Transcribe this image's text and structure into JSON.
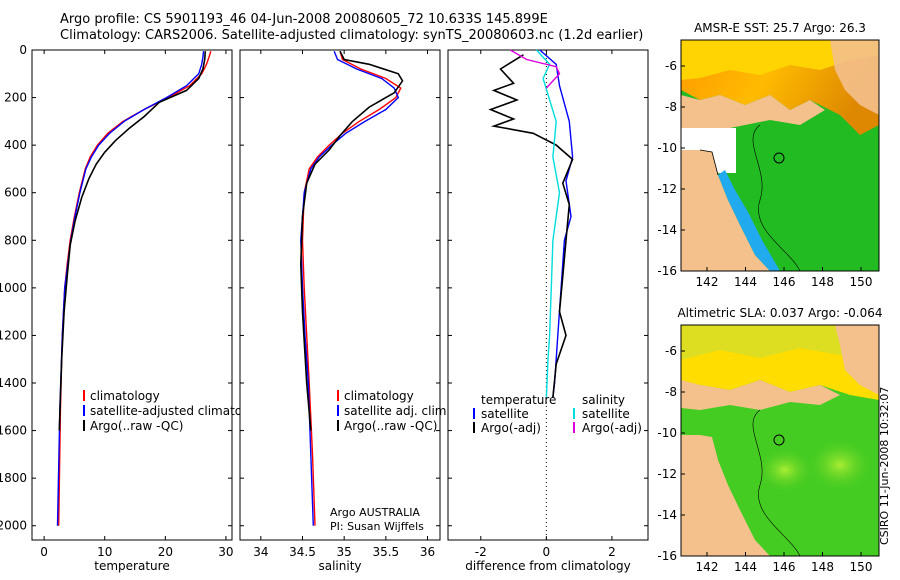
{
  "header": {
    "title_line1": "Argo profile: CS 5901193_46 04-Jun-2008 20080605_72 10.633S 145.899E",
    "title_line2": "Climatology: CARS2006. Satellite-adjusted climatology: synTS_20080603.nc (1.2d earlier)"
  },
  "signature": "CSIRO 11-Jun-2008 10:32:07",
  "colors": {
    "climatology": "#ff0000",
    "satellite": "#0000ff",
    "argo": "#000000",
    "sat_sal": "#00dddd",
    "argo_sal": "#dd00dd",
    "land": "#f4c08c"
  },
  "chart_data": [
    {
      "type": "line",
      "id": "temperature",
      "xlabel": "temperature",
      "xlim": [
        -2,
        31
      ],
      "ylim": [
        0,
        2060
      ],
      "xticks": [
        "0",
        "10",
        "20",
        "30"
      ],
      "yticks": [
        "0",
        "200",
        "400",
        "600",
        "800",
        "1000",
        "1200",
        "1400",
        "1600",
        "1800",
        "2000"
      ],
      "legend": [
        "climatology",
        "satellite-adjusted climatology",
        "Argo(..raw -QC)"
      ],
      "series": [
        {
          "name": "climatology",
          "color": "#ff0000",
          "x": [
            27.5,
            27.2,
            26.8,
            26.0,
            24.0,
            20.5,
            16.5,
            13.0,
            10.5,
            8.8,
            7.6,
            6.8,
            5.8,
            5.0,
            4.3,
            3.8,
            3.4,
            3.0,
            2.7,
            2.4
          ],
          "y": [
            5,
            30,
            60,
            100,
            150,
            200,
            250,
            300,
            350,
            400,
            450,
            500,
            600,
            700,
            800,
            900,
            1000,
            1200,
            1500,
            2000
          ]
        },
        {
          "name": "satellite-adjusted climatology",
          "color": "#0000ff",
          "x": [
            26.3,
            26.2,
            26.0,
            25.5,
            23.5,
            20.2,
            16.5,
            13.2,
            10.8,
            9.0,
            7.8,
            6.9,
            5.9,
            5.1,
            4.4,
            3.9,
            3.4,
            3.0,
            2.6,
            2.2
          ],
          "y": [
            5,
            30,
            60,
            100,
            150,
            200,
            250,
            300,
            350,
            400,
            450,
            500,
            600,
            700,
            800,
            900,
            1000,
            1200,
            1500,
            2000
          ]
        },
        {
          "name": "Argo(..raw -QC)",
          "color": "#000000",
          "x": [
            26.6,
            26.5,
            26.2,
            25.5,
            23.5,
            19.0,
            16.5,
            14.0,
            11.8,
            10.0,
            8.6,
            7.4,
            6.2,
            5.1,
            4.3,
            3.8,
            3.3,
            2.9,
            2.5
          ],
          "y": [
            5,
            40,
            80,
            120,
            170,
            220,
            280,
            330,
            380,
            430,
            480,
            540,
            620,
            720,
            820,
            950,
            1100,
            1300,
            1600
          ]
        }
      ]
    },
    {
      "type": "line",
      "id": "salinity",
      "xlabel": "salinity",
      "xlim": [
        33.75,
        36.15
      ],
      "ylim": [
        0,
        2060
      ],
      "xticks": [
        "34",
        "34.5",
        "35",
        "35.5",
        "36"
      ],
      "legend": [
        "climatology",
        "satellite adj. clim.",
        "Argo(..raw -QC)"
      ],
      "annotation": [
        "Argo AUSTRALIA",
        "PI: Susan Wijffels"
      ],
      "series": [
        {
          "name": "climatology",
          "color": "#ff0000",
          "x": [
            34.95,
            34.98,
            35.2,
            35.5,
            35.68,
            35.62,
            35.42,
            35.18,
            34.98,
            34.82,
            34.68,
            34.58,
            34.52,
            34.5,
            34.52,
            34.55,
            34.58,
            34.62,
            34.65
          ],
          "y": [
            5,
            40,
            80,
            120,
            160,
            200,
            250,
            300,
            350,
            400,
            450,
            500,
            600,
            800,
            1000,
            1200,
            1400,
            1700,
            2000
          ]
        },
        {
          "name": "satellite adj. clim.",
          "color": "#0000ff",
          "x": [
            34.88,
            34.92,
            35.15,
            35.45,
            35.6,
            35.65,
            35.5,
            35.25,
            35.02,
            34.85,
            34.7,
            34.6,
            34.52,
            34.48,
            34.5,
            34.53,
            34.57,
            34.6,
            34.63
          ],
          "y": [
            5,
            40,
            80,
            120,
            160,
            200,
            250,
            300,
            350,
            400,
            450,
            500,
            600,
            800,
            1000,
            1200,
            1400,
            1700,
            2000
          ]
        },
        {
          "name": "Argo(..raw -QC)",
          "color": "#000000",
          "x": [
            34.95,
            35.0,
            35.3,
            35.65,
            35.7,
            35.6,
            35.3,
            35.1,
            34.95,
            34.82,
            34.65,
            34.55,
            34.5,
            34.48,
            34.5,
            34.55,
            34.6
          ],
          "y": [
            5,
            40,
            60,
            100,
            130,
            180,
            240,
            300,
            360,
            420,
            480,
            560,
            700,
            900,
            1100,
            1400,
            1600
          ]
        }
      ]
    },
    {
      "type": "line",
      "id": "difference",
      "xlabel": "difference from climatology",
      "xlim": [
        -3,
        3.1
      ],
      "ylim": [
        0,
        2060
      ],
      "xticks": [
        "-2",
        "0",
        "2"
      ],
      "legend_left": [
        "temperature",
        "satellite",
        "Argo(-adj)"
      ],
      "legend_right": [
        "salinity",
        "satellite",
        "Argo(-adj)"
      ],
      "series": [
        {
          "name": "temperature satellite",
          "color": "#0000ff",
          "x": [
            -0.2,
            0.3,
            0.4,
            0.7,
            0.8,
            0.6,
            0.75,
            0.55,
            0.45,
            0.35,
            0.3,
            0.25,
            0.2
          ],
          "y": [
            0,
            60,
            150,
            300,
            450,
            550,
            700,
            800,
            1000,
            1200,
            1300,
            1400,
            1460
          ]
        },
        {
          "name": "temperature Argo(-adj)",
          "color": "#000000",
          "x": [
            -0.7,
            -1.4,
            -1.0,
            -1.6,
            -0.9,
            -1.7,
            -1.0,
            -1.6,
            -0.4,
            0.3,
            0.8,
            0.5,
            0.7,
            0.6,
            0.5,
            0.4,
            0.6,
            0.3,
            0.2
          ],
          "y": [
            20,
            80,
            140,
            170,
            210,
            250,
            290,
            320,
            350,
            400,
            460,
            560,
            650,
            800,
            950,
            1100,
            1200,
            1320,
            1460
          ]
        },
        {
          "name": "salinity satellite",
          "color": "#00dddd",
          "x": [
            -0.3,
            0.1,
            -0.1,
            0.3,
            0.2,
            0.4,
            0.3,
            0.2,
            0.15,
            0.1,
            0.05,
            0.0
          ],
          "y": [
            0,
            60,
            120,
            300,
            450,
            600,
            700,
            800,
            1000,
            1200,
            1300,
            1460
          ]
        },
        {
          "name": "salinity Argo(-adj)",
          "color": "#dd00dd",
          "x": [
            -1.1,
            -0.6,
            0.3,
            0.4,
            0.2,
            0.0
          ],
          "y": [
            0,
            40,
            70,
            100,
            130,
            160
          ]
        }
      ]
    },
    {
      "type": "heatmap",
      "id": "sst_map",
      "title": "AMSR-E SST: 25.7 Argo: 26.3",
      "xticks": [
        "142",
        "144",
        "146",
        "148",
        "150"
      ],
      "yticks": [
        "-6",
        "-8",
        "-10",
        "-12",
        "-14",
        "-16"
      ]
    },
    {
      "type": "heatmap",
      "id": "sla_map",
      "title": "Altimetric SLA: 0.037 Argo: -0.064",
      "xticks": [
        "142",
        "144",
        "146",
        "148",
        "150"
      ],
      "yticks": [
        "-6",
        "-8",
        "-10",
        "-12",
        "-14",
        "-16"
      ]
    }
  ]
}
